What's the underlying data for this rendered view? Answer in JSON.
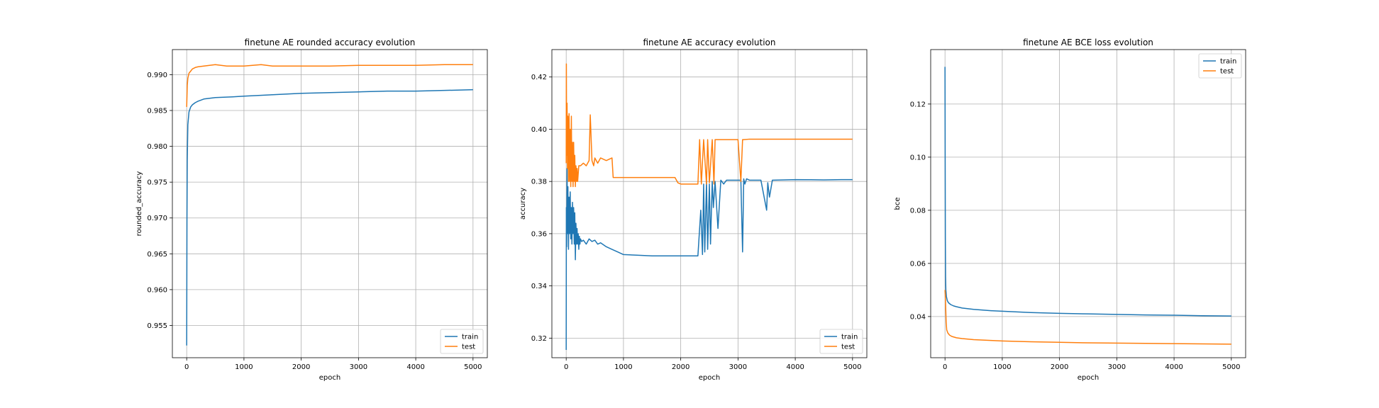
{
  "chart_data": [
    {
      "type": "line",
      "title": "finetune AE rounded accuracy evolution",
      "xlabel": "epoch",
      "ylabel": "rounded_accuracy",
      "xlim": [
        -250,
        5250
      ],
      "ylim": [
        0.9505,
        0.9935
      ],
      "xticks": [
        0,
        1000,
        2000,
        3000,
        4000,
        5000
      ],
      "xtick_labels": [
        "0",
        "1000",
        "2000",
        "3000",
        "4000",
        "5000"
      ],
      "yticks": [
        0.955,
        0.96,
        0.965,
        0.97,
        0.975,
        0.98,
        0.985,
        0.99
      ],
      "ytick_labels": [
        "0.955",
        "0.960",
        "0.965",
        "0.970",
        "0.975",
        "0.980",
        "0.985",
        "0.990"
      ],
      "grid": true,
      "legend_position": "lower-right",
      "series": [
        {
          "name": "train",
          "color": "#1f77b4",
          "x": [
            0,
            5,
            10,
            20,
            40,
            70,
            100,
            150,
            200,
            300,
            500,
            800,
            1000,
            1500,
            2000,
            2500,
            3000,
            3500,
            4000,
            4500,
            5000
          ],
          "y": [
            0.9522,
            0.97,
            0.978,
            0.983,
            0.9848,
            0.9855,
            0.9858,
            0.9861,
            0.9863,
            0.9866,
            0.9868,
            0.9869,
            0.987,
            0.9872,
            0.9874,
            0.9875,
            0.9876,
            0.9877,
            0.9877,
            0.9878,
            0.9879
          ]
        },
        {
          "name": "test",
          "color": "#ff7f0e",
          "x": [
            0,
            5,
            10,
            20,
            40,
            70,
            100,
            150,
            200,
            300,
            400,
            500,
            700,
            1000,
            1300,
            1500,
            2000,
            2500,
            3000,
            3500,
            4000,
            4500,
            5000
          ],
          "y": [
            0.9855,
            0.987,
            0.9885,
            0.9895,
            0.9902,
            0.9905,
            0.9908,
            0.991,
            0.9911,
            0.9912,
            0.9913,
            0.9914,
            0.9912,
            0.9912,
            0.9914,
            0.9912,
            0.9912,
            0.9912,
            0.9913,
            0.9913,
            0.9913,
            0.9914,
            0.9914
          ]
        }
      ]
    },
    {
      "type": "line",
      "title": "finetune AE accuracy evolution",
      "xlabel": "epoch",
      "ylabel": "accuracy",
      "xlim": [
        -250,
        5250
      ],
      "ylim": [
        0.3125,
        0.4305
      ],
      "xticks": [
        0,
        1000,
        2000,
        3000,
        4000,
        5000
      ],
      "xtick_labels": [
        "0",
        "1000",
        "2000",
        "3000",
        "4000",
        "5000"
      ],
      "yticks": [
        0.32,
        0.34,
        0.36,
        0.38,
        0.4,
        0.42
      ],
      "ytick_labels": [
        "0.32",
        "0.34",
        "0.36",
        "0.38",
        "0.40",
        "0.42"
      ],
      "grid": true,
      "legend_position": "lower-right",
      "series": [
        {
          "name": "train",
          "color": "#1f77b4",
          "x": [
            0,
            3,
            8,
            15,
            22,
            30,
            40,
            50,
            60,
            70,
            80,
            90,
            100,
            110,
            120,
            130,
            140,
            150,
            160,
            170,
            180,
            190,
            200,
            210,
            220,
            230,
            240,
            250,
            270,
            300,
            350,
            400,
            450,
            500,
            550,
            600,
            700,
            800,
            900,
            1000,
            1200,
            1500,
            1800,
            2000,
            2200,
            2300,
            2350,
            2380,
            2400,
            2420,
            2450,
            2470,
            2500,
            2520,
            2550,
            2570,
            2600,
            2650,
            2700,
            2750,
            2800,
            3000,
            3050,
            3080,
            3100,
            3120,
            3150,
            3200,
            3400,
            3500,
            3520,
            3550,
            3600,
            4000,
            4500,
            4800,
            5000
          ],
          "y": [
            0.3155,
            0.37,
            0.355,
            0.385,
            0.36,
            0.378,
            0.354,
            0.374,
            0.36,
            0.376,
            0.358,
            0.37,
            0.356,
            0.372,
            0.36,
            0.37,
            0.356,
            0.368,
            0.35,
            0.364,
            0.356,
            0.362,
            0.356,
            0.36,
            0.354,
            0.359,
            0.356,
            0.358,
            0.357,
            0.3575,
            0.356,
            0.358,
            0.357,
            0.3575,
            0.356,
            0.3565,
            0.355,
            0.354,
            0.353,
            0.352,
            0.3518,
            0.3515,
            0.3515,
            0.3515,
            0.3515,
            0.3515,
            0.369,
            0.352,
            0.379,
            0.353,
            0.38,
            0.354,
            0.379,
            0.356,
            0.38,
            0.37,
            0.38,
            0.362,
            0.3805,
            0.379,
            0.3805,
            0.3805,
            0.3805,
            0.353,
            0.381,
            0.379,
            0.381,
            0.3805,
            0.3805,
            0.369,
            0.3795,
            0.374,
            0.3805,
            0.3807,
            0.3806,
            0.3807,
            0.3807
          ]
        },
        {
          "name": "test",
          "color": "#ff7f0e",
          "x": [
            0,
            3,
            8,
            15,
            22,
            30,
            40,
            50,
            60,
            70,
            80,
            90,
            100,
            110,
            120,
            130,
            140,
            150,
            160,
            170,
            180,
            190,
            200,
            220,
            250,
            300,
            350,
            400,
            420,
            450,
            480,
            500,
            550,
            600,
            700,
            800,
            820,
            1000,
            1500,
            1900,
            1950,
            2000,
            2300,
            2330,
            2360,
            2400,
            2450,
            2470,
            2500,
            2550,
            2580,
            2600,
            2650,
            2700,
            2800,
            3000,
            3050,
            3080,
            3100,
            3200,
            4000,
            5000
          ],
          "y": [
            0.387,
            0.425,
            0.39,
            0.41,
            0.385,
            0.405,
            0.38,
            0.406,
            0.38,
            0.4,
            0.378,
            0.405,
            0.38,
            0.395,
            0.378,
            0.395,
            0.38,
            0.39,
            0.378,
            0.386,
            0.38,
            0.385,
            0.38,
            0.386,
            0.386,
            0.387,
            0.386,
            0.388,
            0.4055,
            0.388,
            0.386,
            0.389,
            0.387,
            0.389,
            0.388,
            0.389,
            0.3815,
            0.3815,
            0.3815,
            0.3815,
            0.3795,
            0.379,
            0.379,
            0.396,
            0.379,
            0.396,
            0.379,
            0.396,
            0.3795,
            0.396,
            0.379,
            0.396,
            0.396,
            0.396,
            0.396,
            0.396,
            0.38,
            0.396,
            0.396,
            0.3962,
            0.3962,
            0.3962
          ]
        }
      ]
    },
    {
      "type": "line",
      "title": "finetune AE BCE loss evolution",
      "xlabel": "epoch",
      "ylabel": "bce",
      "xlim": [
        -250,
        5250
      ],
      "ylim": [
        0.0245,
        0.1405
      ],
      "xticks": [
        0,
        1000,
        2000,
        3000,
        4000,
        5000
      ],
      "xtick_labels": [
        "0",
        "1000",
        "2000",
        "3000",
        "4000",
        "5000"
      ],
      "yticks": [
        0.04,
        0.06,
        0.08,
        0.1,
        0.12
      ],
      "ytick_labels": [
        "0.04",
        "0.06",
        "0.08",
        "0.10",
        "0.12"
      ],
      "grid": true,
      "legend_position": "upper-right",
      "series": [
        {
          "name": "train",
          "color": "#1f77b4",
          "x": [
            0,
            3,
            6,
            10,
            15,
            25,
            40,
            60,
            100,
            150,
            200,
            300,
            500,
            800,
            1000,
            1500,
            2000,
            2500,
            3000,
            3500,
            4000,
            4500,
            5000
          ],
          "y": [
            0.134,
            0.1,
            0.07,
            0.055,
            0.05,
            0.0475,
            0.046,
            0.0452,
            0.0445,
            0.044,
            0.0437,
            0.0432,
            0.0427,
            0.0422,
            0.042,
            0.0415,
            0.0412,
            0.041,
            0.0408,
            0.0406,
            0.0405,
            0.0403,
            0.0402
          ]
        },
        {
          "name": "test",
          "color": "#ff7f0e",
          "x": [
            0,
            5,
            10,
            20,
            30,
            50,
            80,
            120,
            200,
            300,
            500,
            800,
            1000,
            1500,
            2000,
            2500,
            3000,
            3500,
            4000,
            4500,
            5000
          ],
          "y": [
            0.05,
            0.048,
            0.045,
            0.038,
            0.035,
            0.0338,
            0.033,
            0.0325,
            0.032,
            0.0317,
            0.0313,
            0.031,
            0.0308,
            0.0305,
            0.0303,
            0.0301,
            0.03,
            0.0299,
            0.0298,
            0.0297,
            0.0296
          ]
        }
      ]
    }
  ]
}
